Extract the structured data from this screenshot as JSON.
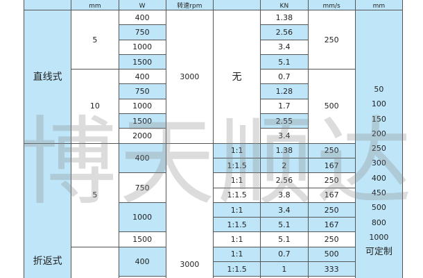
{
  "header": [
    "mm",
    "W",
    "转速rpm",
    "",
    "KN",
    "mm/s",
    "mm"
  ],
  "straight": {
    "type": "直线式",
    "rpm": "3000",
    "ratio": "无",
    "groups": [
      {
        "lead": "5",
        "speed": "250",
        "rows": [
          {
            "power": "400",
            "kn": "1.38"
          },
          {
            "power": "750",
            "kn": "2.56"
          },
          {
            "power": "1000",
            "kn": "3.4"
          },
          {
            "power": "1500",
            "kn": "5.1"
          }
        ]
      },
      {
        "lead": "10",
        "speed": "500",
        "rows": [
          {
            "power": "400",
            "kn": "0.7"
          },
          {
            "power": "750",
            "kn": "1.28"
          },
          {
            "power": "1000",
            "kn": "1.7"
          },
          {
            "power": "1500",
            "kn": "2.55"
          },
          {
            "power": "2000",
            "kn": "3.4"
          }
        ]
      }
    ]
  },
  "folding": {
    "type": "折返式",
    "rpm": "3000",
    "lead": "5",
    "rows": [
      {
        "power": "400",
        "ratio": "1:1",
        "kn": "1.38",
        "speed": "250"
      },
      {
        "ratio": "1:1.5",
        "kn": "2",
        "speed": "167"
      },
      {
        "power": "750",
        "ratio": "1:1",
        "kn": "2.56",
        "speed": "250"
      },
      {
        "ratio": "1:1.5",
        "kn": "3.8",
        "speed": "167"
      },
      {
        "power": "1000",
        "ratio": "1:1",
        "kn": "3.4",
        "speed": "250"
      },
      {
        "ratio": "1:1.5",
        "kn": "5.1",
        "speed": "167"
      },
      {
        "power": "1500",
        "ratio": "1:1",
        "kn": "5.1",
        "speed": "250"
      },
      {
        "power": "400",
        "ratio": "1:1",
        "kn": "0.7",
        "speed": "500"
      },
      {
        "ratio": "1:1.5",
        "kn": "1",
        "speed": "333"
      }
    ]
  },
  "stroke": [
    "50",
    "100",
    "150",
    "200",
    "250",
    "300",
    "400",
    "450",
    "500",
    "800",
    "1000",
    "可定制"
  ],
  "watermark": "博天顺达",
  "colors": {
    "cell_fill": "#bfe5f8",
    "border": "#555555"
  }
}
